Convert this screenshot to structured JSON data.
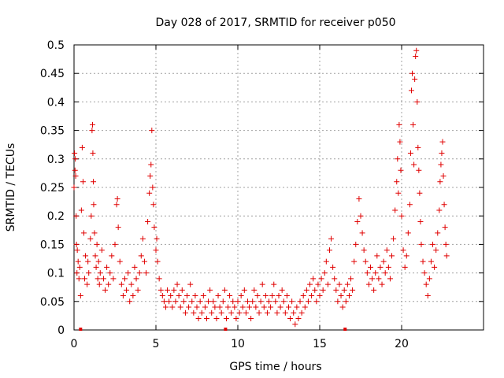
{
  "chart_data": {
    "type": "scatter",
    "title": "Day 028 of 2017, SRMTID for receiver p050",
    "xlabel": "GPS time / hours",
    "ylabel": "SRMTID / TECUs",
    "xlim": [
      0,
      25
    ],
    "ylim": [
      0,
      0.5
    ],
    "x_ticks": [
      0,
      5,
      10,
      15,
      20
    ],
    "x_tick_labels": [
      "0",
      "5",
      "10",
      "15",
      "20"
    ],
    "y_ticks": [
      0,
      0.05,
      0.1,
      0.15,
      0.2,
      0.25,
      0.3,
      0.35,
      0.4,
      0.45,
      0.5
    ],
    "y_tick_labels": [
      "0",
      "0.05",
      "0.1",
      "0.15",
      "0.2",
      "0.25",
      "0.3",
      "0.35",
      "0.4",
      "0.45",
      "0.5"
    ],
    "grid": true,
    "marker": "plus",
    "color": "#e00000",
    "series": [
      {
        "name": "SRMTID",
        "points": [
          [
            0.0,
            0.25
          ],
          [
            0.03,
            0.31
          ],
          [
            0.06,
            0.28
          ],
          [
            0.08,
            0.3
          ],
          [
            0.1,
            0.27
          ],
          [
            0.13,
            0.2
          ],
          [
            0.15,
            0.15
          ],
          [
            0.18,
            0.1
          ],
          [
            0.2,
            0.14
          ],
          [
            0.25,
            0.12
          ],
          [
            0.3,
            0.09
          ],
          [
            0.35,
            0.11
          ],
          [
            0.4,
            0.06
          ],
          [
            0.45,
            0.21
          ],
          [
            0.5,
            0.32
          ],
          [
            0.55,
            0.26
          ],
          [
            0.6,
            0.17
          ],
          [
            0.65,
            0.09
          ],
          [
            0.7,
            0.13
          ],
          [
            0.8,
            0.08
          ],
          [
            0.85,
            0.12
          ],
          [
            0.9,
            0.1
          ],
          [
            1.0,
            0.16
          ],
          [
            1.05,
            0.2
          ],
          [
            1.1,
            0.35
          ],
          [
            1.13,
            0.36
          ],
          [
            1.15,
            0.31
          ],
          [
            1.18,
            0.26
          ],
          [
            1.2,
            0.22
          ],
          [
            1.25,
            0.17
          ],
          [
            1.3,
            0.13
          ],
          [
            1.35,
            0.11
          ],
          [
            1.4,
            0.15
          ],
          [
            1.45,
            0.09
          ],
          [
            1.5,
            0.12
          ],
          [
            1.55,
            0.08
          ],
          [
            1.6,
            0.1
          ],
          [
            1.7,
            0.14
          ],
          [
            1.8,
            0.09
          ],
          [
            1.9,
            0.07
          ],
          [
            2.0,
            0.11
          ],
          [
            2.1,
            0.08
          ],
          [
            2.2,
            0.1
          ],
          [
            2.3,
            0.13
          ],
          [
            2.4,
            0.09
          ],
          [
            2.5,
            0.15
          ],
          [
            2.6,
            0.22
          ],
          [
            2.65,
            0.23
          ],
          [
            2.7,
            0.18
          ],
          [
            2.8,
            0.12
          ],
          [
            2.9,
            0.08
          ],
          [
            3.0,
            0.06
          ],
          [
            3.1,
            0.09
          ],
          [
            3.2,
            0.07
          ],
          [
            3.3,
            0.1
          ],
          [
            3.4,
            0.05
          ],
          [
            3.5,
            0.08
          ],
          [
            3.6,
            0.06
          ],
          [
            3.7,
            0.11
          ],
          [
            3.8,
            0.09
          ],
          [
            3.9,
            0.07
          ],
          [
            4.0,
            0.1
          ],
          [
            4.1,
            0.13
          ],
          [
            4.2,
            0.16
          ],
          [
            4.3,
            0.12
          ],
          [
            4.4,
            0.1
          ],
          [
            4.5,
            0.19
          ],
          [
            4.6,
            0.24
          ],
          [
            4.65,
            0.27
          ],
          [
            4.7,
            0.29
          ],
          [
            4.75,
            0.35
          ],
          [
            4.8,
            0.25
          ],
          [
            4.85,
            0.22
          ],
          [
            4.9,
            0.18
          ],
          [
            5.0,
            0.14
          ],
          [
            5.05,
            0.16
          ],
          [
            5.1,
            0.12
          ],
          [
            5.2,
            0.09
          ],
          [
            5.3,
            0.07
          ],
          [
            5.4,
            0.06
          ],
          [
            5.5,
            0.05
          ],
          [
            5.6,
            0.04
          ],
          [
            5.7,
            0.07
          ],
          [
            5.8,
            0.05
          ],
          [
            5.9,
            0.06
          ],
          [
            6.0,
            0.04
          ],
          [
            6.1,
            0.07
          ],
          [
            6.2,
            0.05
          ],
          [
            6.3,
            0.08
          ],
          [
            6.4,
            0.06
          ],
          [
            6.5,
            0.04
          ],
          [
            6.6,
            0.07
          ],
          [
            6.7,
            0.05
          ],
          [
            6.8,
            0.03
          ],
          [
            6.9,
            0.06
          ],
          [
            7.0,
            0.04
          ],
          [
            7.1,
            0.08
          ],
          [
            7.2,
            0.05
          ],
          [
            7.3,
            0.03
          ],
          [
            7.4,
            0.06
          ],
          [
            7.5,
            0.04
          ],
          [
            7.6,
            0.02
          ],
          [
            7.7,
            0.05
          ],
          [
            7.8,
            0.03
          ],
          [
            7.9,
            0.06
          ],
          [
            8.0,
            0.04
          ],
          [
            8.1,
            0.02
          ],
          [
            8.2,
            0.05
          ],
          [
            8.3,
            0.07
          ],
          [
            8.4,
            0.03
          ],
          [
            8.5,
            0.05
          ],
          [
            8.6,
            0.04
          ],
          [
            8.7,
            0.02
          ],
          [
            8.8,
            0.06
          ],
          [
            8.9,
            0.04
          ],
          [
            9.0,
            0.03
          ],
          [
            9.1,
            0.05
          ],
          [
            9.2,
            0.07
          ],
          [
            9.3,
            0.02
          ],
          [
            9.4,
            0.04
          ],
          [
            9.5,
            0.06
          ],
          [
            9.6,
            0.03
          ],
          [
            9.7,
            0.05
          ],
          [
            9.8,
            0.04
          ],
          [
            9.9,
            0.02
          ],
          [
            10.0,
            0.05
          ],
          [
            10.1,
            0.03
          ],
          [
            10.2,
            0.06
          ],
          [
            10.3,
            0.04
          ],
          [
            10.4,
            0.07
          ],
          [
            10.5,
            0.03
          ],
          [
            10.6,
            0.05
          ],
          [
            10.7,
            0.04
          ],
          [
            10.8,
            0.02
          ],
          [
            10.9,
            0.05
          ],
          [
            11.0,
            0.07
          ],
          [
            11.1,
            0.04
          ],
          [
            11.2,
            0.06
          ],
          [
            11.3,
            0.03
          ],
          [
            11.4,
            0.05
          ],
          [
            11.5,
            0.08
          ],
          [
            11.6,
            0.04
          ],
          [
            11.7,
            0.06
          ],
          [
            11.8,
            0.03
          ],
          [
            11.9,
            0.05
          ],
          [
            12.0,
            0.04
          ],
          [
            12.1,
            0.06
          ],
          [
            12.2,
            0.08
          ],
          [
            12.3,
            0.05
          ],
          [
            12.4,
            0.03
          ],
          [
            12.5,
            0.06
          ],
          [
            12.6,
            0.04
          ],
          [
            12.7,
            0.07
          ],
          [
            12.8,
            0.05
          ],
          [
            12.9,
            0.03
          ],
          [
            13.0,
            0.06
          ],
          [
            13.1,
            0.04
          ],
          [
            13.2,
            0.02
          ],
          [
            13.3,
            0.05
          ],
          [
            13.4,
            0.03
          ],
          [
            13.5,
            0.01
          ],
          [
            13.6,
            0.04
          ],
          [
            13.7,
            0.02
          ],
          [
            13.8,
            0.05
          ],
          [
            13.9,
            0.03
          ],
          [
            14.0,
            0.06
          ],
          [
            14.1,
            0.04
          ],
          [
            14.2,
            0.07
          ],
          [
            14.3,
            0.05
          ],
          [
            14.4,
            0.08
          ],
          [
            14.5,
            0.06
          ],
          [
            14.6,
            0.09
          ],
          [
            14.7,
            0.07
          ],
          [
            14.8,
            0.05
          ],
          [
            14.9,
            0.08
          ],
          [
            15.0,
            0.06
          ],
          [
            15.1,
            0.09
          ],
          [
            15.2,
            0.07
          ],
          [
            15.3,
            0.1
          ],
          [
            15.4,
            0.12
          ],
          [
            15.5,
            0.08
          ],
          [
            15.6,
            0.14
          ],
          [
            15.7,
            0.16
          ],
          [
            15.8,
            0.11
          ],
          [
            15.9,
            0.09
          ],
          [
            16.0,
            0.07
          ],
          [
            16.1,
            0.05
          ],
          [
            16.2,
            0.08
          ],
          [
            16.3,
            0.06
          ],
          [
            16.4,
            0.04
          ],
          [
            16.5,
            0.07
          ],
          [
            16.6,
            0.05
          ],
          [
            16.7,
            0.08
          ],
          [
            16.8,
            0.06
          ],
          [
            16.9,
            0.09
          ],
          [
            17.0,
            0.07
          ],
          [
            17.1,
            0.12
          ],
          [
            17.2,
            0.15
          ],
          [
            17.3,
            0.19
          ],
          [
            17.4,
            0.23
          ],
          [
            17.5,
            0.2
          ],
          [
            17.6,
            0.17
          ],
          [
            17.7,
            0.14
          ],
          [
            17.8,
            0.12
          ],
          [
            17.9,
            0.1
          ],
          [
            18.0,
            0.08
          ],
          [
            18.1,
            0.11
          ],
          [
            18.2,
            0.09
          ],
          [
            18.3,
            0.07
          ],
          [
            18.4,
            0.1
          ],
          [
            18.5,
            0.13
          ],
          [
            18.6,
            0.09
          ],
          [
            18.7,
            0.11
          ],
          [
            18.8,
            0.08
          ],
          [
            18.9,
            0.12
          ],
          [
            19.0,
            0.1
          ],
          [
            19.1,
            0.14
          ],
          [
            19.2,
            0.11
          ],
          [
            19.3,
            0.09
          ],
          [
            19.4,
            0.13
          ],
          [
            19.5,
            0.16
          ],
          [
            19.6,
            0.21
          ],
          [
            19.7,
            0.26
          ],
          [
            19.75,
            0.3
          ],
          [
            19.8,
            0.24
          ],
          [
            19.85,
            0.36
          ],
          [
            19.9,
            0.33
          ],
          [
            19.95,
            0.28
          ],
          [
            20.0,
            0.2
          ],
          [
            20.1,
            0.14
          ],
          [
            20.2,
            0.11
          ],
          [
            20.3,
            0.13
          ],
          [
            20.4,
            0.17
          ],
          [
            20.5,
            0.22
          ],
          [
            20.55,
            0.31
          ],
          [
            20.6,
            0.42
          ],
          [
            20.65,
            0.45
          ],
          [
            20.7,
            0.36
          ],
          [
            20.75,
            0.29
          ],
          [
            20.8,
            0.44
          ],
          [
            20.85,
            0.48
          ],
          [
            20.9,
            0.49
          ],
          [
            20.95,
            0.4
          ],
          [
            21.0,
            0.32
          ],
          [
            21.05,
            0.28
          ],
          [
            21.1,
            0.24
          ],
          [
            21.15,
            0.19
          ],
          [
            21.2,
            0.15
          ],
          [
            21.3,
            0.12
          ],
          [
            21.4,
            0.1
          ],
          [
            21.5,
            0.08
          ],
          [
            21.6,
            0.06
          ],
          [
            21.7,
            0.09
          ],
          [
            21.8,
            0.12
          ],
          [
            21.9,
            0.15
          ],
          [
            22.0,
            0.11
          ],
          [
            22.1,
            0.14
          ],
          [
            22.2,
            0.17
          ],
          [
            22.3,
            0.21
          ],
          [
            22.35,
            0.26
          ],
          [
            22.4,
            0.29
          ],
          [
            22.45,
            0.31
          ],
          [
            22.5,
            0.33
          ],
          [
            22.55,
            0.27
          ],
          [
            22.6,
            0.22
          ],
          [
            22.65,
            0.18
          ],
          [
            22.7,
            0.15
          ],
          [
            22.75,
            0.13
          ]
        ]
      }
    ],
    "gap_markers_x": [
      0.4,
      9.25,
      16.55
    ]
  }
}
